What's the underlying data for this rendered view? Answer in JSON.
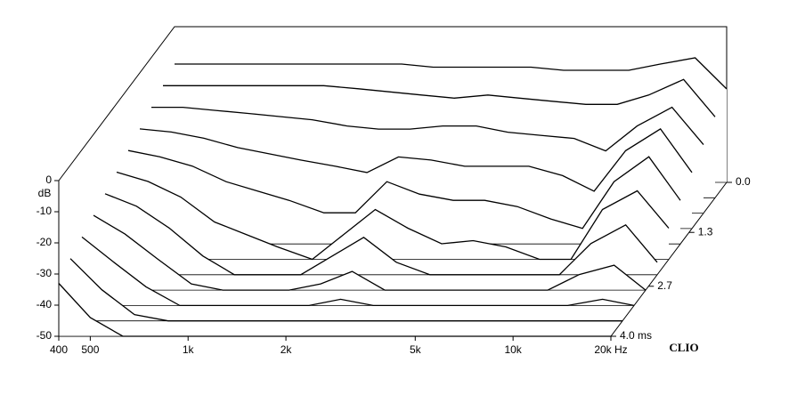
{
  "chart_data": {
    "type": "waterfall",
    "y_label": "dB",
    "brand": "CLIO",
    "x": [
      400,
      500,
      630,
      800,
      1000,
      1250,
      1600,
      2000,
      2500,
      3150,
      4000,
      5000,
      6300,
      8000,
      10000,
      12500,
      16000,
      20000
    ],
    "times": [
      0,
      0.4,
      0.8,
      1.2,
      1.6,
      2.0,
      2.4,
      2.8,
      3.2,
      3.6,
      4.0
    ],
    "series": [
      {
        "values": [
          -12,
          -12,
          -12,
          -12,
          -12,
          -12,
          -12,
          -12,
          -13,
          -13,
          -13,
          -13,
          -14,
          -14,
          -14,
          -12,
          -10,
          -20
        ]
      },
      {
        "values": [
          -14,
          -14,
          -14,
          -14,
          -14,
          -14,
          -15,
          -16,
          -17,
          -18,
          -17,
          -18,
          -19,
          -20,
          -20,
          -17,
          -12,
          -24
        ]
      },
      {
        "values": [
          -16,
          -16,
          -17,
          -18,
          -19,
          -20,
          -22,
          -23,
          -23,
          -22,
          -22,
          -24,
          -25,
          -26,
          -30,
          -22,
          -16,
          -28
        ]
      },
      {
        "values": [
          -18,
          -19,
          -21,
          -24,
          -26,
          -28,
          -30,
          -32,
          -27,
          -28,
          -30,
          -30,
          -30,
          -33,
          -38,
          -25,
          -18,
          -32
        ]
      },
      {
        "values": [
          -20,
          -22,
          -25,
          -30,
          -33,
          -36,
          -40,
          -40,
          -30,
          -34,
          -36,
          -36,
          -38,
          -42,
          -45,
          -30,
          -22,
          -36
        ]
      },
      {
        "values": [
          -22,
          -25,
          -30,
          -38,
          -42,
          -46,
          -50,
          -42,
          -34,
          -40,
          -45,
          -44,
          -46,
          -50,
          -50,
          -34,
          -28,
          -40
        ]
      },
      {
        "values": [
          -24,
          -28,
          -35,
          -44,
          -50,
          -50,
          -50,
          -44,
          -38,
          -46,
          -50,
          -50,
          -50,
          -50,
          -50,
          -40,
          -34,
          -46
        ]
      },
      {
        "values": [
          -26,
          -32,
          -40,
          -48,
          -50,
          -50,
          -50,
          -48,
          -44,
          -50,
          -50,
          -50,
          -50,
          -50,
          -50,
          -45,
          -42,
          -50
        ]
      },
      {
        "values": [
          -28,
          -36,
          -44,
          -50,
          -50,
          -50,
          -50,
          -50,
          -48,
          -50,
          -50,
          -50,
          -50,
          -50,
          -50,
          -50,
          -48,
          -50
        ]
      },
      {
        "values": [
          -30,
          -40,
          -48,
          -50,
          -50,
          -50,
          -50,
          -50,
          -50,
          -50,
          -50,
          -50,
          -50,
          -50,
          -50,
          -50,
          -50,
          -50
        ]
      },
      {
        "values": [
          -33,
          -44,
          -50,
          -50,
          -50,
          -50,
          -50,
          -50,
          -50,
          -50,
          -50,
          -50,
          -50,
          -50,
          -50,
          -50,
          -50,
          -50
        ]
      }
    ],
    "color": "#000000",
    "xlim": [
      400,
      20000
    ],
    "log_x": true,
    "xticks": [
      400,
      500,
      {
        "value": 1000,
        "label": "1k"
      },
      {
        "value": 2000,
        "label": "2k"
      },
      {
        "value": 5000,
        "label": "5k"
      },
      {
        "value": 10000,
        "label": "10k"
      },
      {
        "value": 20000,
        "label": "20k Hz"
      }
    ],
    "ylim": [
      -50,
      0
    ],
    "yticks": [
      0,
      -10,
      -20,
      -30,
      -40,
      -50
    ],
    "zlim": [
      0,
      4
    ],
    "zticks": [
      {
        "value": 0,
        "label": "0.0"
      },
      1.3,
      2.7,
      {
        "value": 4,
        "label": "4.0 ms"
      }
    ]
  }
}
